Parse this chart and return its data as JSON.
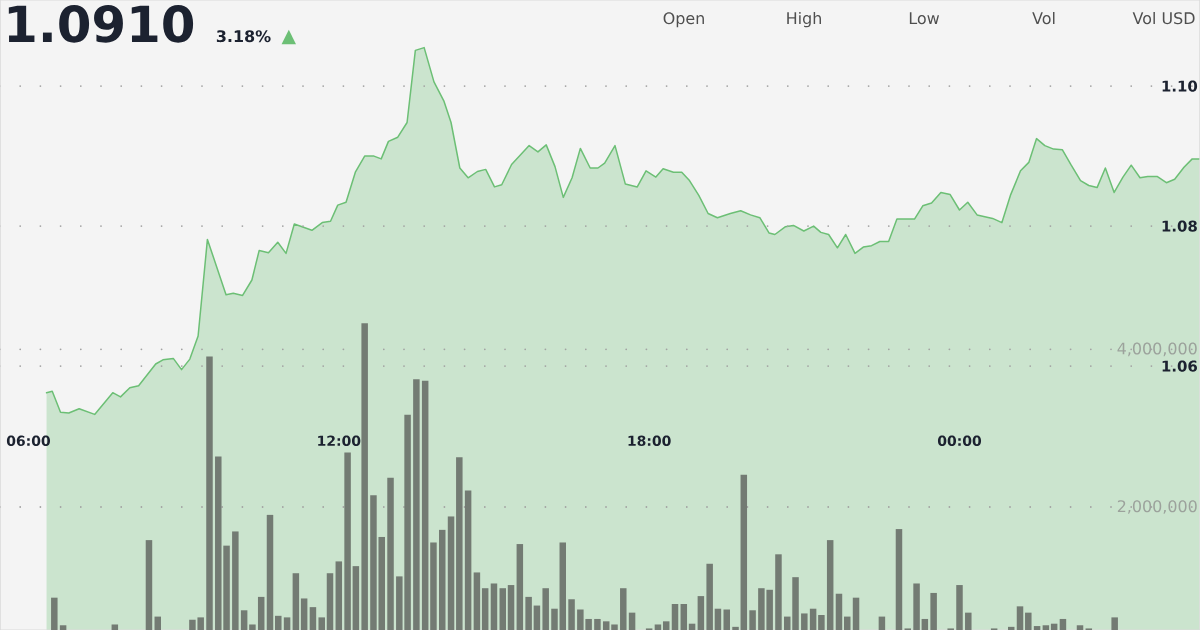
{
  "chart_data": {
    "type": "area",
    "title": "1.0910",
    "annotations": [
      "3.18%",
      "▲",
      "Open",
      "High",
      "Low",
      "Vol",
      "Vol USD"
    ],
    "xlim": [
      5.45,
      28.65
    ],
    "xticks": [
      {
        "value": 6,
        "label": "06:00"
      },
      {
        "value": 12,
        "label": "12:00"
      },
      {
        "value": 18,
        "label": "18:00"
      },
      {
        "value": 24,
        "label": "00:00"
      }
    ],
    "ylim": [
      1.0223,
      1.1123
    ],
    "yticks": [
      1.06,
      1.08,
      {
        "value": 1.1,
        "label": "1.10"
      }
    ],
    "y2lim": [
      440000,
      8430000
    ],
    "y2ticks": [
      {
        "value": 2000000,
        "label": "2,000,000"
      },
      {
        "value": 4000000,
        "label": "4,000,000"
      }
    ],
    "grid": "y",
    "series": [
      {
        "color": "#6cbf75",
        "x": [
          6.35,
          6.46,
          6.62,
          6.78,
          6.98,
          7.28,
          7.63,
          7.78,
          7.96,
          8.13,
          8.46,
          8.6,
          8.8,
          8.96,
          9.12,
          9.28,
          9.46,
          9.82,
          9.96,
          10.14,
          10.32,
          10.46,
          10.64,
          10.82,
          10.98,
          11.14,
          11.48,
          11.68,
          11.84,
          11.98,
          12.14,
          12.32,
          12.5,
          12.68,
          12.82,
          12.96,
          13.14,
          13.32,
          13.48,
          13.65,
          13.84,
          14.03,
          14.17,
          14.34,
          14.5,
          14.68,
          14.84,
          15.01,
          15.15,
          15.34,
          15.68,
          15.85,
          16.01,
          16.18,
          16.34,
          16.51,
          16.67,
          16.86,
          17.01,
          17.14,
          17.34,
          17.54,
          17.77,
          17.94,
          18.13,
          18.27,
          18.47,
          18.63,
          18.78,
          18.96,
          19.14,
          19.32,
          19.57,
          19.77,
          19.96,
          20.14,
          20.32,
          20.43,
          20.63,
          20.79,
          20.99,
          21.18,
          21.32,
          21.47,
          21.64,
          21.8,
          21.98,
          22.14,
          22.3,
          22.46,
          22.63,
          22.79,
          23.13,
          23.29,
          23.46,
          23.64,
          23.82,
          24.0,
          24.16,
          24.34,
          24.64,
          24.82,
          24.99,
          25.18,
          25.34,
          25.49,
          25.65,
          25.82,
          25.99,
          26.16,
          26.34,
          26.5,
          26.66,
          26.82,
          26.99,
          27.16,
          27.32,
          27.49,
          27.64,
          27.82,
          28.0,
          28.16,
          28.34,
          28.5,
          28.64
        ],
        "values": [
          1.0562,
          1.0564,
          1.0534,
          1.0533,
          1.0539,
          1.0531,
          1.0562,
          1.0556,
          1.0569,
          1.0572,
          1.0603,
          1.0609,
          1.0611,
          1.0595,
          1.061,
          1.0643,
          1.0781,
          1.0702,
          1.0704,
          1.0701,
          1.0723,
          1.0765,
          1.0762,
          1.0777,
          1.0761,
          1.0803,
          1.0794,
          1.0805,
          1.0807,
          1.083,
          1.0834,
          1.0877,
          1.09,
          1.09,
          1.0896,
          1.0921,
          1.0927,
          1.0948,
          1.1051,
          1.1055,
          1.1006,
          1.0979,
          1.0948,
          1.0883,
          1.0869,
          1.0878,
          1.0881,
          1.0856,
          1.0859,
          1.0888,
          1.0915,
          1.0906,
          1.0916,
          1.0885,
          1.0841,
          1.0869,
          1.0911,
          1.0883,
          1.0883,
          1.089,
          1.0915,
          1.086,
          1.0856,
          1.0879,
          1.087,
          1.0882,
          1.0877,
          1.0877,
          1.0865,
          1.0844,
          1.0818,
          1.0812,
          1.0818,
          1.0822,
          1.0816,
          1.0812,
          1.079,
          1.0788,
          1.0799,
          1.0801,
          1.0793,
          1.08,
          1.0791,
          1.0788,
          1.0769,
          1.0788,
          1.0761,
          1.077,
          1.0772,
          1.0778,
          1.0778,
          1.081,
          1.081,
          1.0829,
          1.0833,
          1.0848,
          1.0845,
          1.0823,
          1.0834,
          1.0816,
          1.0811,
          1.0805,
          1.0845,
          1.0879,
          1.0891,
          1.0925,
          1.0915,
          1.091,
          1.0909,
          1.0887,
          1.0865,
          1.0858,
          1.0855,
          1.0883,
          1.0848,
          1.087,
          1.0887,
          1.0869,
          1.0871,
          1.0871,
          1.0862,
          1.0867,
          1.0884,
          1.0896,
          1.0896
        ]
      },
      {
        "type": "bar",
        "axis": "y2",
        "color": "#737b73",
        "x": [
          6.5,
          6.67,
          7.67,
          8.33,
          8.5,
          9.17,
          9.33,
          9.5,
          9.67,
          9.83,
          10.0,
          10.17,
          10.33,
          10.5,
          10.67,
          10.83,
          11.0,
          11.17,
          11.33,
          11.5,
          11.67,
          11.83,
          12.0,
          12.17,
          12.33,
          12.5,
          12.67,
          12.83,
          13.0,
          13.17,
          13.33,
          13.5,
          13.67,
          13.83,
          14.0,
          14.17,
          14.33,
          14.5,
          14.67,
          14.83,
          15.0,
          15.17,
          15.33,
          15.5,
          15.67,
          15.83,
          16.0,
          16.17,
          16.33,
          16.5,
          16.67,
          16.83,
          17.0,
          17.17,
          17.33,
          17.5,
          17.67,
          18.0,
          18.17,
          18.33,
          18.5,
          18.67,
          18.83,
          19.0,
          19.17,
          19.33,
          19.5,
          19.67,
          19.83,
          20.0,
          20.17,
          20.33,
          20.5,
          20.67,
          20.83,
          21.0,
          21.17,
          21.33,
          21.5,
          21.67,
          21.83,
          22.0,
          22.5,
          22.83,
          23.0,
          23.17,
          23.33,
          23.5,
          23.83,
          24.0,
          24.17,
          24.67,
          25.0,
          25.17,
          25.33,
          25.5,
          25.67,
          25.83,
          26.0,
          26.33,
          26.5,
          27.0
        ],
        "values": [
          850000,
          500000,
          510000,
          1580000,
          610000,
          570000,
          600000,
          3910000,
          2640000,
          1510000,
          1690000,
          690000,
          510000,
          860000,
          1900000,
          620000,
          600000,
          1160000,
          840000,
          730000,
          600000,
          1160000,
          1310000,
          2690000,
          1250000,
          4330000,
          2150000,
          1620000,
          2370000,
          1120000,
          3170000,
          3620000,
          3600000,
          1550000,
          1710000,
          1880000,
          2630000,
          2210000,
          1170000,
          970000,
          1030000,
          970000,
          1010000,
          1530000,
          860000,
          750000,
          970000,
          710000,
          1550000,
          830000,
          700000,
          580000,
          580000,
          550000,
          510000,
          970000,
          660000,
          460000,
          510000,
          550000,
          770000,
          770000,
          520000,
          870000,
          1280000,
          710000,
          700000,
          480000,
          2410000,
          690000,
          970000,
          950000,
          1400000,
          610000,
          1110000,
          650000,
          710000,
          630000,
          1580000,
          900000,
          610000,
          850000,
          610000,
          1720000,
          460000,
          1030000,
          580000,
          910000,
          460000,
          1010000,
          660000,
          460000,
          480000,
          740000,
          660000,
          490000,
          500000,
          520000,
          580000,
          500000,
          460000,
          600000
        ]
      }
    ]
  }
}
